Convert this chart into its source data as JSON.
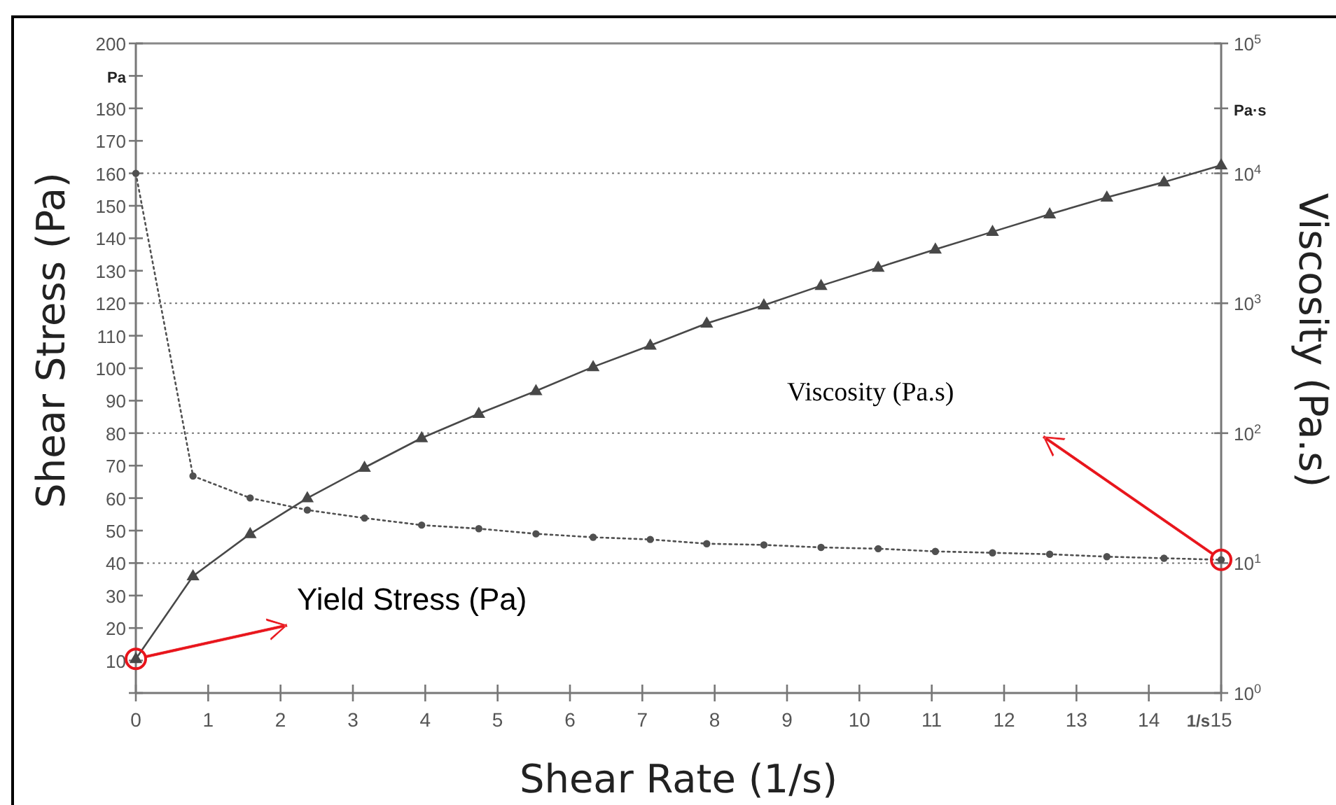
{
  "chart_data": {
    "type": "line",
    "xlabel": "Shear Rate (1/s)",
    "ylabel": "Shear Stress (Pa)",
    "y2label": "Viscosity (Pa.s)",
    "x": [
      0,
      0.79,
      1.58,
      2.37,
      3.16,
      3.95,
      4.74,
      5.53,
      6.32,
      7.11,
      7.89,
      8.68,
      9.47,
      10.26,
      11.05,
      11.84,
      12.63,
      13.42,
      14.21,
      15
    ],
    "series": [
      {
        "color": "#484848",
        "marker": "triangle",
        "line_style": "solid",
        "values": [
          10.5,
          36,
          49,
          60,
          69.4,
          78.5,
          86,
          93,
          100.4,
          107,
          113.8,
          119.4,
          125.4,
          131,
          136.6,
          142,
          147.4,
          152.6,
          157.3,
          162.5
        ]
      },
      {
        "color": "#505050",
        "marker": "circle",
        "line_style": "dotted",
        "axis": "y2",
        "values": [
          10000,
          46.8,
          31.7,
          25.6,
          22.2,
          19.6,
          18.4,
          16.8,
          15.8,
          15.2,
          14.1,
          13.8,
          13.2,
          12.9,
          12.3,
          12,
          11.7,
          11.2,
          10.9,
          10.6
        ]
      }
    ],
    "xlim": [
      0,
      15
    ],
    "xticks": [
      0,
      1,
      2,
      3,
      4,
      5,
      6,
      7,
      8,
      9,
      10,
      11,
      12,
      13,
      14,
      15
    ],
    "ylim": [
      0,
      200
    ],
    "yticks": [
      {
        "value": 0,
        "label": null
      },
      10,
      20,
      30,
      40,
      50,
      60,
      70,
      80,
      90,
      100,
      110,
      120,
      130,
      140,
      150,
      160,
      170,
      180,
      {
        "value": 190,
        "label": "Pa"
      },
      200
    ],
    "y2lim": [
      1,
      100000
    ],
    "log": "y2",
    "y2ticks": [
      {
        "value": 1,
        "label": "10$^{0}$"
      },
      {
        "value": 10,
        "label": "10$^{1}$"
      },
      {
        "value": 100,
        "label": "10$^{2}$"
      },
      {
        "value": 1000,
        "label": "10$^{3}$"
      },
      {
        "value": 10000,
        "label": "10$^{4}$"
      },
      {
        "value": 31623,
        "label": "Pa·s"
      },
      {
        "value": 100000,
        "label": "10$^{5}$"
      }
    ],
    "grid": "y2",
    "annotations": [
      "Yield Stress (Pa)",
      "Viscosity (Pa.s)",
      "1/s"
    ]
  }
}
